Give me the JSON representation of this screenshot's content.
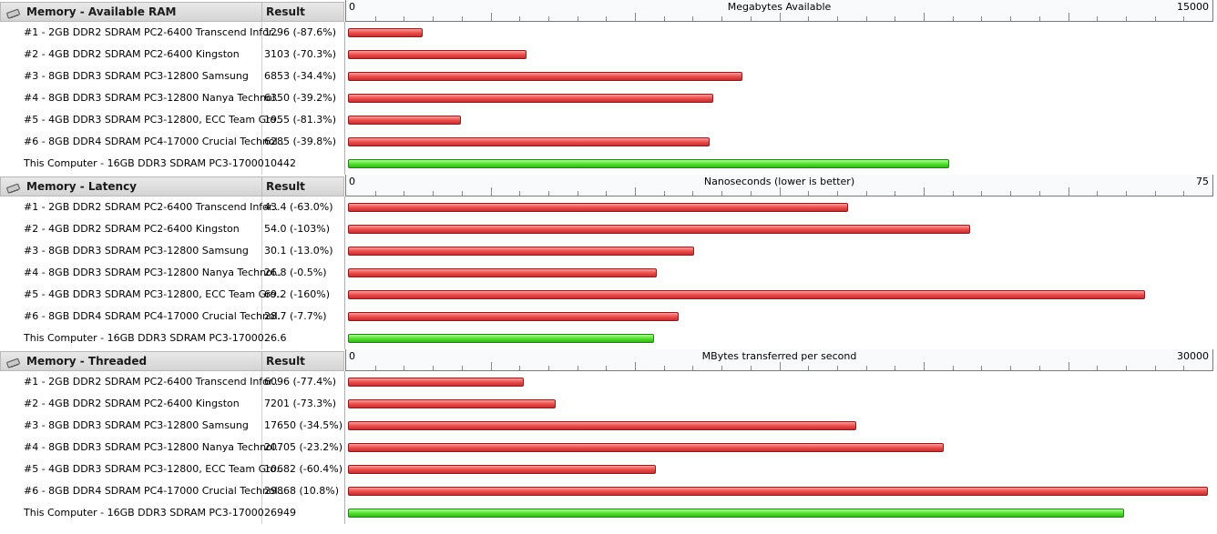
{
  "result_header": "Result",
  "sections": [
    {
      "title": "Memory - Available RAM",
      "axis": {
        "min": "0",
        "max": "15000",
        "max_value": 15000,
        "title": "Megabytes Available"
      },
      "rows": [
        {
          "name": "#1 - 2GB DDR2 SDRAM PC2-6400 Transcend Infor..",
          "result": "1296 (-87.6%)",
          "value": 1296,
          "color": "red"
        },
        {
          "name": "#2 - 4GB DDR2 SDRAM PC2-6400 Kingston",
          "result": "3103 (-70.3%)",
          "value": 3103,
          "color": "red"
        },
        {
          "name": "#3 - 8GB DDR3 SDRAM PC3-12800 Samsung",
          "result": "6853 (-34.4%)",
          "value": 6853,
          "color": "red"
        },
        {
          "name": "#4 - 8GB DDR3 SDRAM PC3-12800 Nanya Technol..",
          "result": "6350 (-39.2%)",
          "value": 6350,
          "color": "red"
        },
        {
          "name": "#5 - 4GB DDR3 SDRAM PC3-12800, ECC Team Gro..",
          "result": "1955 (-81.3%)",
          "value": 1955,
          "color": "red"
        },
        {
          "name": "#6 - 8GB DDR4 SDRAM PC4-17000 Crucial Technol..",
          "result": "6285 (-39.8%)",
          "value": 6285,
          "color": "red"
        },
        {
          "name": "This Computer - 16GB DDR3 SDRAM PC3-17000",
          "result": "10442",
          "value": 10442,
          "color": "green"
        }
      ]
    },
    {
      "title": "Memory - Latency",
      "axis": {
        "min": "0",
        "max": "75",
        "max_value": 75,
        "title": "Nanoseconds (lower is better)"
      },
      "rows": [
        {
          "name": "#1 - 2GB DDR2 SDRAM PC2-6400 Transcend Infor..",
          "result": "43.4 (-63.0%)",
          "value": 43.4,
          "color": "red"
        },
        {
          "name": "#2 - 4GB DDR2 SDRAM PC2-6400 Kingston",
          "result": "54.0 (-103%)",
          "value": 54.0,
          "color": "red"
        },
        {
          "name": "#3 - 8GB DDR3 SDRAM PC3-12800 Samsung",
          "result": "30.1 (-13.0%)",
          "value": 30.1,
          "color": "red"
        },
        {
          "name": "#4 - 8GB DDR3 SDRAM PC3-12800 Nanya Technol..",
          "result": "26.8 (-0.5%)",
          "value": 26.8,
          "color": "red"
        },
        {
          "name": "#5 - 4GB DDR3 SDRAM PC3-12800, ECC Team Gro..",
          "result": "69.2 (-160%)",
          "value": 69.2,
          "color": "red"
        },
        {
          "name": "#6 - 8GB DDR4 SDRAM PC4-17000 Crucial Technol..",
          "result": "28.7 (-7.7%)",
          "value": 28.7,
          "color": "red"
        },
        {
          "name": "This Computer - 16GB DDR3 SDRAM PC3-17000",
          "result": "26.6",
          "value": 26.6,
          "color": "green"
        }
      ]
    },
    {
      "title": "Memory - Threaded",
      "axis": {
        "min": "0",
        "max": "30000",
        "max_value": 30000,
        "title": "MBytes transferred per second"
      },
      "rows": [
        {
          "name": "#1 - 2GB DDR2 SDRAM PC2-6400 Transcend Infor..",
          "result": "6096 (-77.4%)",
          "value": 6096,
          "color": "red"
        },
        {
          "name": "#2 - 4GB DDR2 SDRAM PC2-6400 Kingston",
          "result": "7201 (-73.3%)",
          "value": 7201,
          "color": "red"
        },
        {
          "name": "#3 - 8GB DDR3 SDRAM PC3-12800 Samsung",
          "result": "17650 (-34.5%)",
          "value": 17650,
          "color": "red"
        },
        {
          "name": "#4 - 8GB DDR3 SDRAM PC3-12800 Nanya Technol..",
          "result": "20705 (-23.2%)",
          "value": 20705,
          "color": "red"
        },
        {
          "name": "#5 - 4GB DDR3 SDRAM PC3-12800, ECC Team Gro..",
          "result": "10682 (-60.4%)",
          "value": 10682,
          "color": "red"
        },
        {
          "name": "#6 - 8GB DDR4 SDRAM PC4-17000 Crucial Technol..",
          "result": "29868 (10.8%)",
          "value": 29868,
          "color": "red"
        },
        {
          "name": "This Computer - 16GB DDR3 SDRAM PC3-17000",
          "result": "26949",
          "value": 26949,
          "color": "green"
        }
      ]
    }
  ],
  "colors": {
    "bar_red": "#e84848",
    "bar_green": "#4fdc2e",
    "header_bg": "#dcdcdc"
  },
  "icons": {
    "section_icon": "memory-chip-icon"
  }
}
